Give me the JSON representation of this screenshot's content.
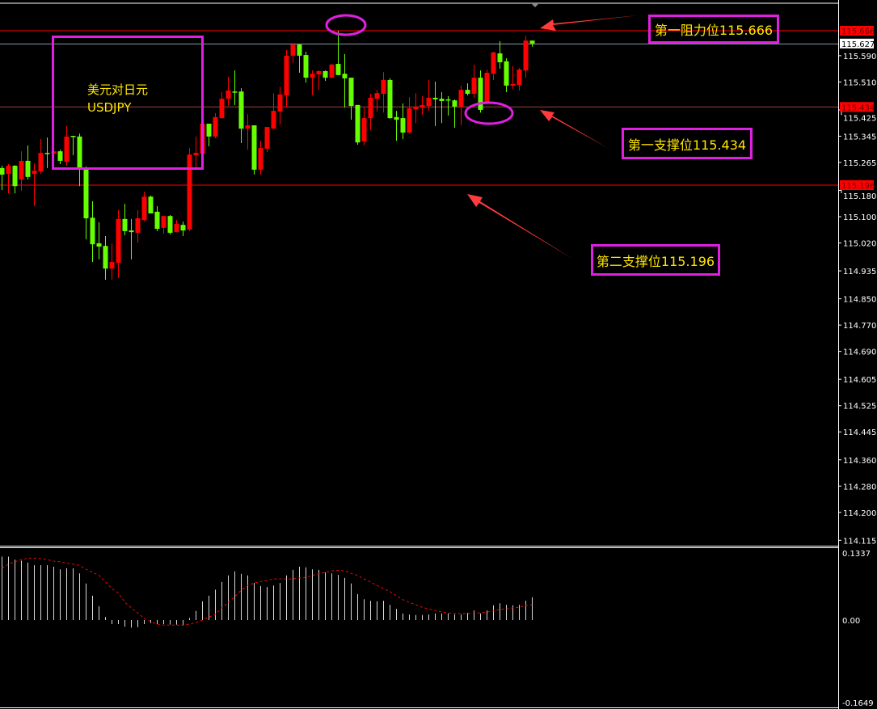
{
  "chart_data": {
    "type": "candlestick",
    "symbol_label": "美元对日元",
    "symbol": "USDJPY",
    "colors": {
      "up": "#ff0000",
      "down": "#66ff00",
      "background": "#000000",
      "annotation": "#e020e0",
      "annotation_text": "#ffe600",
      "macd_histogram": "#d8d8d8",
      "macd_signal": "#ff0000"
    },
    "price_axis": {
      "ylim": [
        114.115,
        115.69
      ],
      "tick_labels": [
        "115.590",
        "115.510",
        "115.425",
        "115.345",
        "115.265",
        "115.180",
        "115.100",
        "115.020",
        "114.935",
        "114.850",
        "114.770",
        "114.690",
        "114.605",
        "114.525",
        "114.445",
        "114.360",
        "114.280",
        "114.200",
        "114.115"
      ],
      "current_price": "115.627"
    },
    "levels": [
      {
        "price": 115.666,
        "label": "115.666",
        "color": "#ff0000",
        "note": "第一阻力位115.666"
      },
      {
        "price": 115.434,
        "label": "115.434",
        "color": "#ff0000",
        "note": "第一支撑位115.434"
      },
      {
        "price": 115.196,
        "label": "115.196",
        "color": "#ff0000",
        "note": "第二支撑位115.196"
      }
    ],
    "candles_ohlc": [
      [
        115.248,
        115.255,
        115.181,
        115.228
      ],
      [
        115.23,
        115.26,
        115.171,
        115.255
      ],
      [
        115.255,
        115.257,
        115.171,
        115.193
      ],
      [
        115.213,
        115.299,
        115.179,
        115.27
      ],
      [
        115.27,
        115.317,
        115.213,
        115.221
      ],
      [
        115.23,
        115.262,
        115.132,
        115.24
      ],
      [
        115.238,
        115.336,
        115.23,
        115.294
      ],
      [
        115.294,
        115.341,
        115.248,
        115.292
      ],
      [
        115.292,
        115.319,
        115.26,
        115.299
      ],
      [
        115.299,
        115.304,
        115.26,
        115.27
      ],
      [
        115.267,
        115.376,
        115.255,
        115.344
      ],
      [
        115.346,
        115.346,
        115.287,
        115.344
      ],
      [
        115.344,
        115.353,
        115.193,
        115.25
      ],
      [
        115.245,
        115.253,
        115.031,
        115.095
      ],
      [
        115.097,
        115.147,
        114.962,
        115.016
      ],
      [
        115.019,
        115.083,
        114.97,
        115.009
      ],
      [
        115.011,
        115.041,
        114.908,
        114.942
      ],
      [
        114.942,
        115.019,
        114.908,
        114.962
      ],
      [
        114.96,
        115.12,
        114.913,
        115.093
      ],
      [
        115.093,
        115.139,
        115.043,
        115.056
      ],
      [
        115.058,
        115.093,
        114.97,
        115.053
      ],
      [
        115.051,
        115.12,
        115.021,
        115.095
      ],
      [
        115.09,
        115.176,
        115.085,
        115.161
      ],
      [
        115.161,
        115.164,
        115.11,
        115.11
      ],
      [
        115.115,
        115.132,
        115.056,
        115.063
      ],
      [
        115.066,
        115.102,
        115.048,
        115.102
      ],
      [
        115.102,
        115.105,
        115.046,
        115.051
      ],
      [
        115.053,
        115.09,
        115.053,
        115.078
      ],
      [
        115.075,
        115.085,
        115.041,
        115.058
      ],
      [
        115.061,
        115.309,
        115.056,
        115.289
      ],
      [
        115.287,
        115.344,
        115.25,
        115.294
      ],
      [
        115.292,
        115.383,
        115.292,
        115.383
      ],
      [
        115.383,
        115.383,
        115.314,
        115.344
      ],
      [
        115.344,
        115.415,
        115.339,
        115.403
      ],
      [
        115.4,
        115.479,
        115.398,
        115.459
      ],
      [
        115.459,
        115.526,
        115.437,
        115.484
      ],
      [
        115.481,
        115.545,
        115.44,
        115.479
      ],
      [
        115.481,
        115.491,
        115.324,
        115.368
      ],
      [
        115.368,
        115.412,
        115.304,
        115.378
      ],
      [
        115.378,
        115.378,
        115.228,
        115.243
      ],
      [
        115.243,
        115.331,
        115.228,
        115.309
      ],
      [
        115.307,
        115.373,
        115.297,
        115.373
      ],
      [
        115.368,
        115.476,
        115.368,
        115.422
      ],
      [
        115.42,
        115.496,
        115.38,
        115.472
      ],
      [
        115.469,
        115.607,
        115.432,
        115.59
      ],
      [
        115.59,
        115.627,
        115.568,
        115.624
      ],
      [
        115.624,
        115.624,
        115.538,
        115.59
      ],
      [
        115.592,
        115.602,
        115.508,
        115.523
      ],
      [
        115.523,
        115.545,
        115.469,
        115.535
      ],
      [
        115.533,
        115.545,
        115.486,
        115.543
      ],
      [
        115.543,
        115.545,
        115.513,
        115.523
      ],
      [
        115.523,
        115.565,
        115.521,
        115.563
      ],
      [
        115.565,
        115.666,
        115.531,
        115.531
      ],
      [
        115.535,
        115.595,
        115.432,
        115.521
      ],
      [
        115.523,
        115.523,
        115.395,
        115.437
      ],
      [
        115.44,
        115.44,
        115.319,
        115.326
      ],
      [
        115.329,
        115.432,
        115.317,
        115.4
      ],
      [
        115.4,
        115.474,
        115.363,
        115.462
      ],
      [
        115.459,
        115.486,
        115.42,
        115.476
      ],
      [
        115.474,
        115.54,
        115.417,
        115.516
      ],
      [
        115.516,
        115.521,
        115.398,
        115.4
      ],
      [
        115.403,
        115.422,
        115.331,
        115.395
      ],
      [
        115.4,
        115.445,
        115.336,
        115.356
      ],
      [
        115.356,
        115.464,
        115.353,
        115.43
      ],
      [
        115.427,
        115.476,
        115.385,
        115.435
      ],
      [
        115.432,
        115.467,
        115.41,
        115.44
      ],
      [
        115.437,
        115.516,
        115.422,
        115.462
      ],
      [
        115.462,
        115.511,
        115.376,
        115.457
      ],
      [
        115.459,
        115.479,
        115.385,
        115.452
      ],
      [
        115.457,
        115.467,
        115.408,
        115.454
      ],
      [
        115.454,
        115.457,
        115.371,
        115.435
      ],
      [
        115.435,
        115.499,
        115.378,
        115.486
      ],
      [
        115.486,
        115.506,
        115.469,
        115.474
      ],
      [
        115.474,
        115.563,
        115.462,
        115.523
      ],
      [
        115.523,
        115.545,
        115.417,
        115.425
      ],
      [
        115.445,
        115.548,
        115.445,
        115.538
      ],
      [
        115.535,
        115.602,
        115.516,
        115.6
      ],
      [
        115.597,
        115.634,
        115.55,
        115.57
      ],
      [
        115.573,
        115.582,
        115.479,
        115.499
      ],
      [
        115.499,
        115.558,
        115.489,
        115.504
      ],
      [
        115.501,
        115.553,
        115.484,
        115.548
      ],
      [
        115.545,
        115.651,
        115.523,
        115.636
      ],
      [
        115.636,
        115.636,
        115.617,
        115.627
      ]
    ],
    "macd": {
      "ylim": [
        -0.1649,
        0.1337
      ],
      "tick_labels": [
        "0.1337",
        "0.00",
        "-0.1649"
      ],
      "histogram": [
        0.125,
        0.125,
        0.119,
        0.117,
        0.113,
        0.108,
        0.108,
        0.108,
        0.105,
        0.1,
        0.102,
        0.102,
        0.092,
        0.072,
        0.048,
        0.027,
        0.006,
        -0.008,
        -0.008,
        -0.013,
        -0.015,
        -0.014,
        -0.008,
        -0.006,
        -0.008,
        -0.008,
        -0.009,
        -0.009,
        -0.011,
        0.004,
        0.018,
        0.037,
        0.048,
        0.06,
        0.075,
        0.088,
        0.096,
        0.091,
        0.088,
        0.073,
        0.067,
        0.065,
        0.068,
        0.073,
        0.088,
        0.099,
        0.105,
        0.104,
        0.1,
        0.099,
        0.094,
        0.092,
        0.089,
        0.083,
        0.072,
        0.051,
        0.041,
        0.038,
        0.037,
        0.038,
        0.03,
        0.022,
        0.013,
        0.011,
        0.01,
        0.01,
        0.011,
        0.013,
        0.013,
        0.013,
        0.011,
        0.011,
        0.014,
        0.019,
        0.013,
        0.019,
        0.029,
        0.033,
        0.03,
        0.029,
        0.03,
        0.038,
        0.045
      ],
      "signal": [
        0.102,
        0.11,
        0.115,
        0.119,
        0.122,
        0.122,
        0.121,
        0.119,
        0.116,
        0.115,
        0.112,
        0.11,
        0.108,
        0.1,
        0.094,
        0.088,
        0.075,
        0.062,
        0.053,
        0.035,
        0.024,
        0.014,
        0.003,
        -0.003,
        -0.008,
        -0.01,
        -0.01,
        -0.01,
        -0.01,
        -0.008,
        -0.005,
        0.0,
        0.006,
        0.011,
        0.024,
        0.035,
        0.046,
        0.059,
        0.068,
        0.073,
        0.076,
        0.078,
        0.081,
        0.081,
        0.081,
        0.081,
        0.083,
        0.084,
        0.088,
        0.091,
        0.094,
        0.097,
        0.098,
        0.097,
        0.092,
        0.088,
        0.081,
        0.075,
        0.068,
        0.062,
        0.056,
        0.048,
        0.04,
        0.035,
        0.03,
        0.025,
        0.022,
        0.019,
        0.016,
        0.014,
        0.013,
        0.013,
        0.013,
        0.014,
        0.014,
        0.016,
        0.018,
        0.021,
        0.022,
        0.024,
        0.025,
        0.029,
        0.03
      ]
    }
  }
}
